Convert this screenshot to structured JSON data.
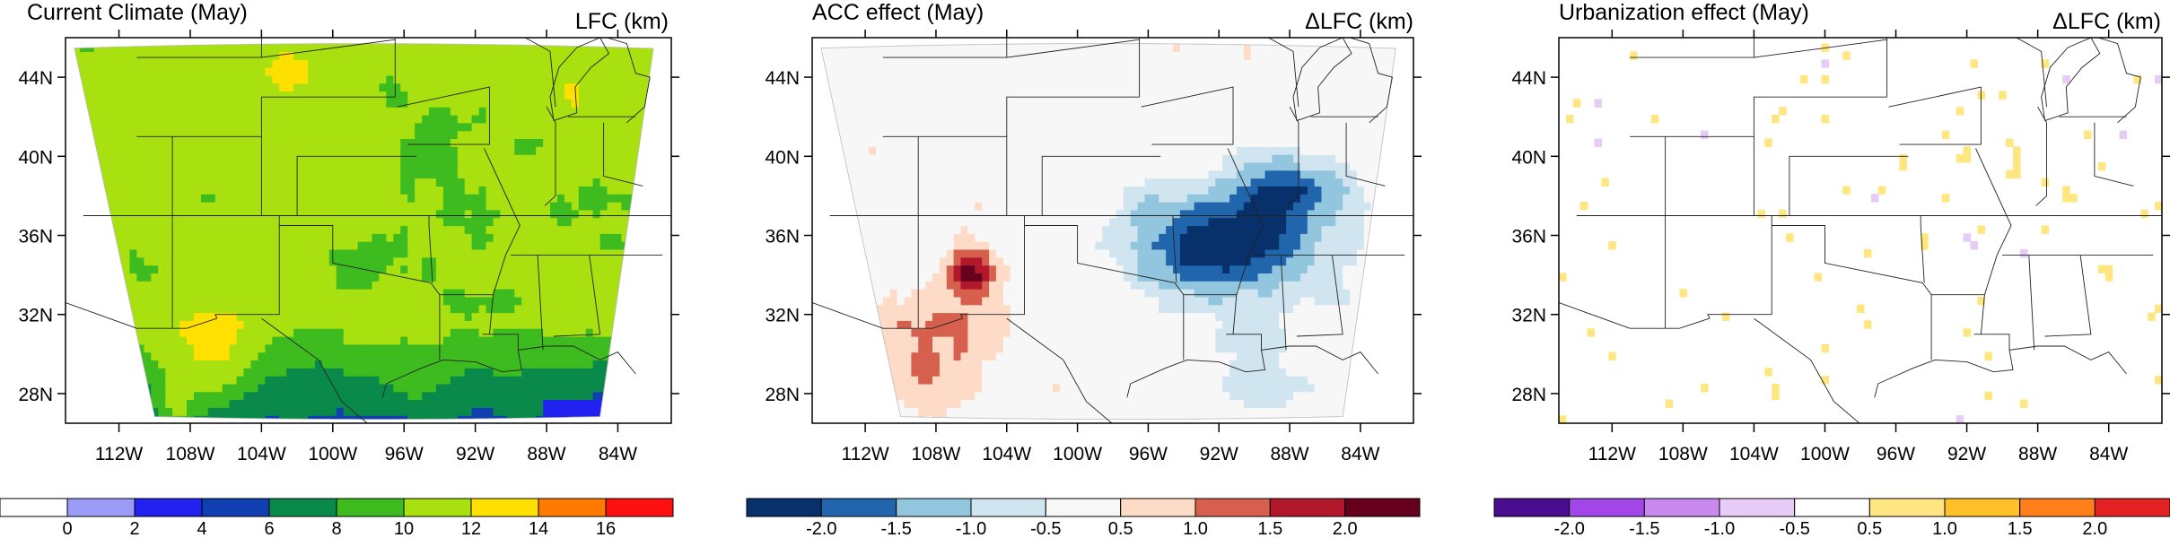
{
  "chart_data": [
    {
      "type": "heatmap",
      "title": "Current Climate (May)",
      "units_label": "LFC (km)",
      "x_ticks": [
        "112W",
        "108W",
        "104W",
        "100W",
        "96W",
        "92W",
        "88W",
        "84W"
      ],
      "y_ticks": [
        "28N",
        "32N",
        "36N",
        "40N",
        "44N"
      ],
      "x_range_deg": [
        -115,
        -81
      ],
      "y_range_deg": [
        26.5,
        46
      ],
      "colorbar": {
        "tick_labels": [
          "0",
          "2",
          "4",
          "6",
          "8",
          "10",
          "12",
          "14",
          "16"
        ],
        "bins": [
          {
            "from": null,
            "to": 0,
            "color": "#ffffff"
          },
          {
            "from": 0,
            "to": 2,
            "color": "#9b9bf7"
          },
          {
            "from": 2,
            "to": 4,
            "color": "#2222f0"
          },
          {
            "from": 4,
            "to": 6,
            "color": "#0f3fb0"
          },
          {
            "from": 6,
            "to": 8,
            "color": "#0a8a4a"
          },
          {
            "from": 8,
            "to": 10,
            "color": "#3dbb1f"
          },
          {
            "from": 10,
            "to": 12,
            "color": "#a8e010"
          },
          {
            "from": 12,
            "to": 14,
            "color": "#ffe000"
          },
          {
            "from": 14,
            "to": 16,
            "color": "#ff7a00"
          },
          {
            "from": 16,
            "to": null,
            "color": "#ff1010"
          }
        ]
      }
    },
    {
      "type": "heatmap",
      "title": "ACC effect (May)",
      "units_label": "ΔLFC (km)",
      "x_ticks": [
        "112W",
        "108W",
        "104W",
        "100W",
        "96W",
        "92W",
        "88W",
        "84W"
      ],
      "y_ticks": [
        "28N",
        "32N",
        "36N",
        "40N",
        "44N"
      ],
      "x_range_deg": [
        -115,
        -81
      ],
      "y_range_deg": [
        26.5,
        46
      ],
      "colorbar": {
        "tick_labels": [
          "-2.0",
          "-1.5",
          "-1.0",
          "-0.5",
          "0.5",
          "1.0",
          "1.5",
          "2.0"
        ],
        "bins": [
          {
            "from": null,
            "to": -2.0,
            "color": "#08306b"
          },
          {
            "from": -2.0,
            "to": -1.5,
            "color": "#2166ac"
          },
          {
            "from": -1.5,
            "to": -1.0,
            "color": "#92c5de"
          },
          {
            "from": -1.0,
            "to": -0.5,
            "color": "#d1e5f0"
          },
          {
            "from": -0.5,
            "to": 0.5,
            "color": "#f7f7f7"
          },
          {
            "from": 0.5,
            "to": 1.0,
            "color": "#fddbc7"
          },
          {
            "from": 1.0,
            "to": 1.5,
            "color": "#d6604d"
          },
          {
            "from": 1.5,
            "to": 2.0,
            "color": "#b2182b"
          },
          {
            "from": 2.0,
            "to": null,
            "color": "#67001f"
          }
        ]
      }
    },
    {
      "type": "heatmap",
      "title": "Urbanization effect (May)",
      "units_label": "ΔLFC (km)",
      "x_ticks": [
        "112W",
        "108W",
        "104W",
        "100W",
        "96W",
        "92W",
        "88W",
        "84W"
      ],
      "y_ticks": [
        "28N",
        "32N",
        "36N",
        "40N",
        "44N"
      ],
      "x_range_deg": [
        -115,
        -81
      ],
      "y_range_deg": [
        26.5,
        46
      ],
      "colorbar": {
        "tick_labels": [
          "-2.0",
          "-1.5",
          "-1.0",
          "-0.5",
          "0.5",
          "1.0",
          "1.5",
          "2.0"
        ],
        "bins": [
          {
            "from": null,
            "to": -2.0,
            "color": "#4a0c8f"
          },
          {
            "from": -2.0,
            "to": -1.5,
            "color": "#a346e8"
          },
          {
            "from": -1.5,
            "to": -1.0,
            "color": "#c98af0"
          },
          {
            "from": -1.0,
            "to": -0.5,
            "color": "#e6ccf7"
          },
          {
            "from": -0.5,
            "to": 0.5,
            "color": "#ffffff"
          },
          {
            "from": 0.5,
            "to": 1.0,
            "color": "#ffe680"
          },
          {
            "from": 1.0,
            "to": 1.5,
            "color": "#ffc02a"
          },
          {
            "from": 1.5,
            "to": 2.0,
            "color": "#ff7f1a"
          },
          {
            "from": 2.0,
            "to": null,
            "color": "#e42222"
          }
        ]
      }
    }
  ]
}
